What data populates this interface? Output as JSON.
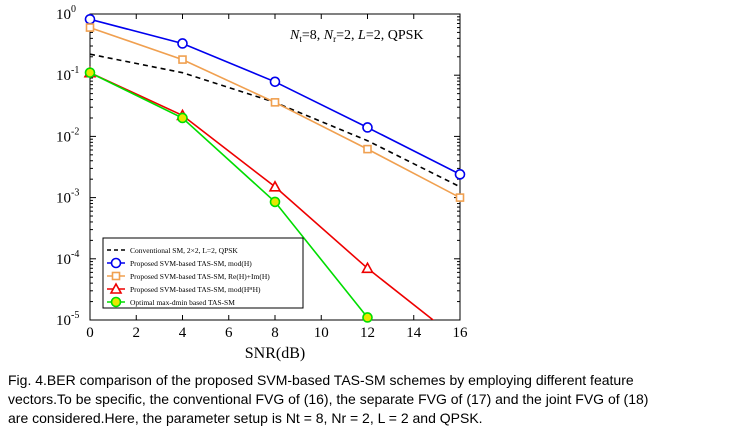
{
  "chart_data": {
    "type": "line",
    "annotation_parts": [
      "N",
      "t",
      "=8, ",
      "N",
      "r",
      "=2, ",
      "L",
      "=2, QPSK"
    ],
    "xlabel": "SNR(dB)",
    "ylabel": "",
    "xlim": [
      0,
      16
    ],
    "ylim": [
      1e-05,
      1
    ],
    "y_scale": "log",
    "x_ticks": [
      0,
      2,
      4,
      6,
      8,
      10,
      12,
      14,
      16
    ],
    "y_tick_labels": [
      {
        "value": 1,
        "base": "10",
        "exp": "0"
      },
      {
        "value": 0.1,
        "base": "10",
        "exp": "-1"
      },
      {
        "value": 0.01,
        "base": "10",
        "exp": "-2"
      },
      {
        "value": 0.001,
        "base": "10",
        "exp": "-3"
      },
      {
        "value": 0.0001,
        "base": "10",
        "exp": "-4"
      },
      {
        "value": 1e-05,
        "base": "10",
        "exp": "-5"
      }
    ],
    "grid": false,
    "legend_placement": "bottom-left",
    "series": [
      {
        "name": "Conventional SM, 2×2, L=2, QPSK",
        "color": "#000000",
        "dash": "dashed",
        "marker": "none",
        "x": [
          0,
          4,
          8,
          12,
          16
        ],
        "y": [
          0.22,
          0.11,
          0.036,
          0.0085,
          0.0015
        ]
      },
      {
        "name": "Proposed SVM-based TAS-SM, mod(H)",
        "color": "#0000ee",
        "dash": "solid",
        "marker": "circle",
        "x": [
          0,
          4,
          8,
          12,
          16
        ],
        "y": [
          0.82,
          0.33,
          0.078,
          0.014,
          0.0024
        ]
      },
      {
        "name": "Proposed SVM-based TAS-SM, Re(H)+Im(H)",
        "color": "#f0a050",
        "dash": "solid",
        "marker": "square",
        "x": [
          0,
          4,
          8,
          12,
          16
        ],
        "y": [
          0.6,
          0.18,
          0.036,
          0.0062,
          0.001
        ]
      },
      {
        "name": "Proposed SVM-based TAS-SM, mod(H^H H)",
        "color": "#ee0000",
        "dash": "solid",
        "marker": "triangle",
        "x": [
          0,
          4,
          8,
          12,
          16
        ],
        "y": [
          0.11,
          0.022,
          0.0015,
          7e-05,
          4.5e-06
        ]
      },
      {
        "name": "Optimal max-d_min based TAS-SM",
        "color": "#00dd00",
        "dash": "solid",
        "marker": "circle-filled",
        "marker_fill": "#e8e800",
        "x": [
          0,
          4,
          8,
          12
        ],
        "y": [
          0.11,
          0.02,
          0.00085,
          1.1e-05
        ]
      }
    ]
  },
  "legend_entries": [
    {
      "text": "Conventional SM, 2×2, L=2, QPSK"
    },
    {
      "text": "Proposed SVM-based TAS-SM, mod(H)"
    },
    {
      "text": "Proposed SVM-based TAS-SM, Re(H)+Im(H)"
    },
    {
      "text": "Proposed SVM-based TAS-SM, mod(HᴴH)"
    },
    {
      "text": "Optimal max-dmin based TAS-SM"
    }
  ],
  "caption": {
    "lines": [
      "Fig. 4.BER comparison of the proposed SVM-based TAS-SM schemes by employing different feature",
      "vectors.To be specific, the conventional FVG of (16), the separate FVG of (17) and the joint FVG of (18)",
      "are considered.Here, the parameter setup is Nt = 8, Nr = 2, L = 2 and QPSK."
    ]
  }
}
